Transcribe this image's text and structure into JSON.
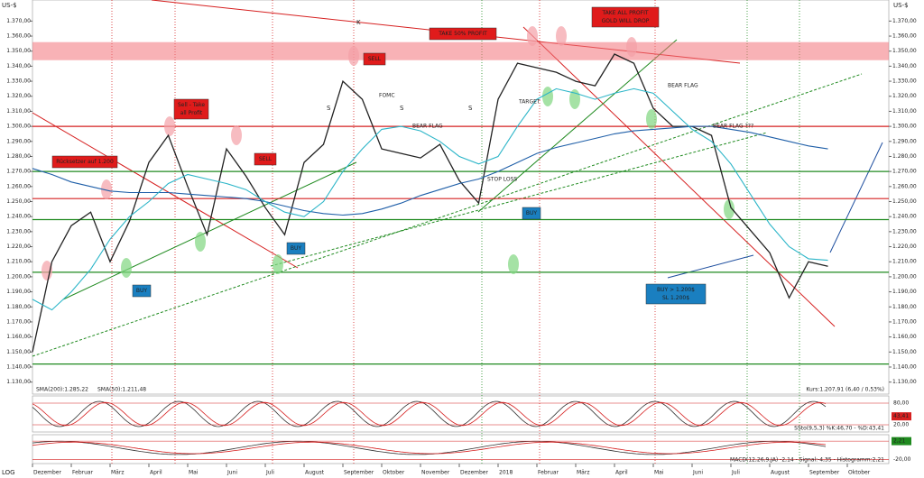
{
  "chart_data": {
    "type": "line",
    "currency_left": "US-$",
    "currency_right": "US-$",
    "scale_label": "LOG",
    "quote": "Kurs:1.207,91 (6,40 / 0,53%)",
    "categories": [
      "Dezember",
      null,
      "Februar",
      null,
      "März",
      null,
      "April",
      null,
      "Mai",
      null,
      "Juni",
      null,
      "Juli",
      null,
      "August",
      null,
      "September",
      null,
      "Oktober",
      null,
      "November",
      null,
      "Dezember",
      null,
      "2018",
      null,
      "Februar",
      null,
      "März",
      null,
      "April",
      null,
      "Mai",
      null,
      "Juni",
      null,
      "Juli",
      null,
      "August",
      null,
      "September",
      null,
      "Oktober"
    ],
    "series": [
      {
        "color": "#222222",
        "values": [
          1.15,
          1.21,
          1.234,
          1.243,
          1.21,
          1.237,
          1.276,
          1.294,
          1.26,
          1.228,
          1.285,
          1.267,
          1.246,
          1.228,
          1.276,
          1.288,
          1.33,
          1.318,
          1.285,
          1.282,
          1.279,
          1.288,
          1.264,
          1.249,
          1.318,
          1.342,
          1.339,
          1.336,
          1.33,
          1.327,
          1.348,
          1.342,
          1.312,
          1.3,
          1.3,
          1.294,
          1.246,
          1.231,
          1.216,
          1.186,
          1.21,
          1.207,
          null
        ]
      },
      {
        "name": "SMA(200):1.285,22",
        "color": "#1f5fa8",
        "values": [
          1.272,
          1.268,
          1.263,
          1.26,
          1.257,
          1.256,
          1.256,
          1.256,
          1.255,
          1.254,
          1.253,
          1.252,
          1.25,
          1.247,
          1.244,
          1.242,
          1.241,
          1.242,
          1.245,
          1.249,
          1.254,
          1.258,
          1.262,
          1.265,
          1.27,
          1.276,
          1.282,
          1.286,
          1.289,
          1.292,
          1.295,
          1.297,
          1.298,
          1.299,
          1.3,
          1.3,
          1.298,
          1.296,
          1.293,
          1.29,
          1.287,
          1.285,
          null
        ]
      },
      {
        "name": "SMA(50):1.211,48",
        "color": "#2bb5c8",
        "values": [
          1.185,
          1.178,
          1.19,
          1.205,
          1.225,
          1.24,
          1.25,
          1.262,
          1.268,
          1.265,
          1.262,
          1.258,
          1.25,
          1.243,
          1.24,
          1.25,
          1.27,
          1.285,
          1.298,
          1.3,
          1.297,
          1.29,
          1.28,
          1.275,
          1.28,
          1.3,
          1.318,
          1.325,
          1.322,
          1.318,
          1.322,
          1.325,
          1.322,
          1.31,
          1.298,
          1.29,
          1.275,
          1.255,
          1.235,
          1.22,
          1.212,
          1.211,
          null
        ]
      }
    ],
    "ylim": [
      1.122,
      1.384
    ],
    "yticks": [
      {
        "value": 1.13,
        "label": "1.130,00"
      },
      {
        "value": 1.14,
        "label": "1.140,00"
      },
      {
        "value": 1.15,
        "label": "1.150,00"
      },
      {
        "value": 1.16,
        "label": "1.160,00"
      },
      {
        "value": 1.17,
        "label": "1.170,00"
      },
      {
        "value": 1.18,
        "label": "1.180,00"
      },
      {
        "value": 1.19,
        "label": "1.190,00"
      },
      {
        "value": 1.2,
        "label": "1.200,00"
      },
      {
        "value": 1.21,
        "label": "1.210,00"
      },
      {
        "value": 1.22,
        "label": "1.220,00"
      },
      {
        "value": 1.23,
        "label": "1.230,00"
      },
      {
        "value": 1.24,
        "label": "1.240,00"
      },
      {
        "value": 1.25,
        "label": "1.250,00"
      },
      {
        "value": 1.26,
        "label": "1.260,00"
      },
      {
        "value": 1.27,
        "label": "1.270,00"
      },
      {
        "value": 1.28,
        "label": "1.280,00"
      },
      {
        "value": 1.29,
        "label": "1.290,00"
      },
      {
        "value": 1.3,
        "label": "1.300,00"
      },
      {
        "value": 1.31,
        "label": "1.310,00"
      },
      {
        "value": 1.32,
        "label": "1.320,00"
      },
      {
        "value": 1.33,
        "label": "1.330,00"
      },
      {
        "value": 1.34,
        "label": "1.340,00"
      },
      {
        "value": 1.35,
        "label": "1.350,00"
      },
      {
        "value": 1.36,
        "label": "1.360,00"
      },
      {
        "value": 1.37,
        "label": "1.370,00"
      }
    ],
    "zone": [
      1.344,
      1.356
    ],
    "zone_color": "#f2727a",
    "levels": [
      {
        "value": 1.3,
        "color": "#d62020"
      },
      {
        "value": 1.252,
        "color": "#d62020"
      },
      {
        "value": 1.203,
        "color": "#1f8a1f"
      },
      {
        "value": 1.27,
        "color": "#1f8a1f"
      },
      {
        "value": 1.238,
        "color": "#1f8a1f"
      },
      {
        "value": 1.142,
        "color": "#1f8a1f"
      }
    ],
    "annotations": [
      {
        "lines": [
          "Rücksetzer auf 1.200"
        ],
        "color": "#e01b1b",
        "boxed": true
      },
      {
        "lines": [
          "Sell - Take",
          "all Profit"
        ],
        "color": "#e01b1b",
        "boxed": true
      },
      {
        "lines": [
          "SELL"
        ],
        "color": "#e01b1b",
        "boxed": true
      },
      {
        "lines": [
          "SELL"
        ],
        "color": "#e01b1b",
        "boxed": true
      },
      {
        "lines": [
          "BUY"
        ],
        "color": "#1a7fc0",
        "boxed": true
      },
      {
        "lines": [
          "BUY"
        ],
        "color": "#1a7fc0",
        "boxed": true
      },
      {
        "lines": [
          "BUY"
        ],
        "color": "#1a7fc0",
        "boxed": true
      },
      {
        "lines": [
          "TAKE 50% PROFIT"
        ],
        "color": "#e01b1b",
        "boxed": true
      },
      {
        "lines": [
          "TAKE ALL PROFIT",
          "GOLD WILL DROP"
        ],
        "color": "#e01b1b",
        "boxed": true
      },
      {
        "lines": [
          "BUY > 1.200$",
          "SL 1.200$"
        ],
        "color": "#1a7fc0",
        "boxed": true
      },
      {
        "lines": [
          "STOP LOSS"
        ],
        "color": "#e01b1b",
        "boxed": false
      },
      {
        "lines": [
          "TARGET"
        ],
        "color": "#1f8a1f",
        "boxed": false
      },
      {
        "lines": [
          "FOMC"
        ],
        "color": "#b020b0",
        "boxed": false
      },
      {
        "lines": [
          "BEAR FLAG"
        ],
        "color": "#1a2fc0",
        "boxed": false
      },
      {
        "lines": [
          "BEAR FLAG"
        ],
        "color": "#1a2fc0",
        "boxed": false
      },
      {
        "lines": [
          "BEAR FLAG ???"
        ],
        "color": "#1a2fc0",
        "boxed": false
      },
      {
        "lines": [
          "K"
        ],
        "color": "#e01b1b",
        "boxed": false
      },
      {
        "lines": [
          "S"
        ],
        "color": "#e01b1b",
        "boxed": false
      },
      {
        "lines": [
          "S"
        ],
        "color": "#e01b1b",
        "boxed": false
      },
      {
        "lines": [
          "S"
        ],
        "color": "#e01b1b",
        "boxed": false
      }
    ],
    "panels": [
      {
        "label": "SSto(9,5,3) %K:46,70 - %D:43,41",
        "ylim": [
          0,
          100
        ],
        "ticks": [
          {
            "value": 80,
            "label": "80,00"
          },
          {
            "value": 43.41,
            "label": "43,41"
          },
          {
            "value": 20,
            "label": "20,00"
          }
        ]
      },
      {
        "label": "MACD(12,26,9,JA) -2,14 - Signal:-4,35 - Histogramm:2,21",
        "ylim": [
          -25,
          10
        ],
        "ticks": [
          {
            "value": 2.21,
            "label": "2,21"
          },
          {
            "value": -20,
            "label": "-20,00"
          }
        ]
      }
    ]
  }
}
